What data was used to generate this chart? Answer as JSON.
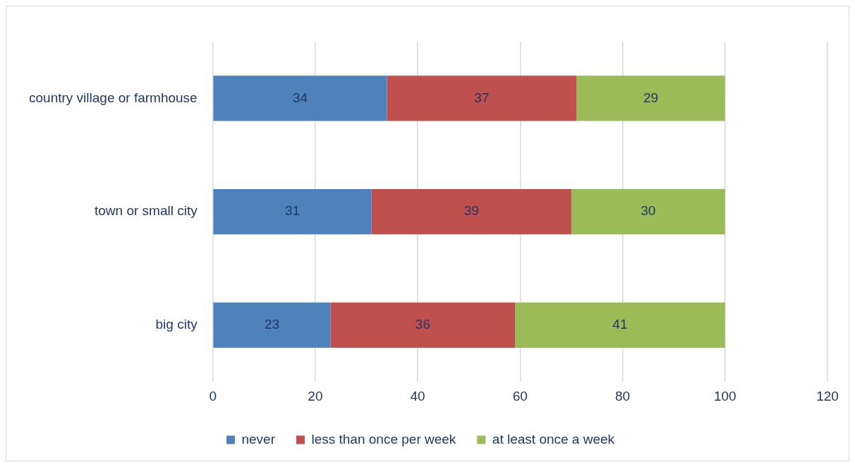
{
  "chart_data": {
    "type": "bar",
    "orientation": "horizontal",
    "stacked": true,
    "categories": [
      "country village or farmhouse",
      "town or small city",
      "big city"
    ],
    "series": [
      {
        "name": "never",
        "color": "#4f81bd",
        "values": [
          34,
          31,
          23
        ]
      },
      {
        "name": "less than once per week",
        "color": "#c0504d",
        "values": [
          37,
          39,
          36
        ]
      },
      {
        "name": "at least once a week",
        "color": "#9bbb59",
        "values": [
          29,
          30,
          41
        ]
      }
    ],
    "xlim": [
      0,
      120
    ],
    "xticks": [
      0,
      20,
      40,
      60,
      80,
      100,
      120
    ],
    "grid": "x",
    "legend": "bottom",
    "data_labels": true
  }
}
